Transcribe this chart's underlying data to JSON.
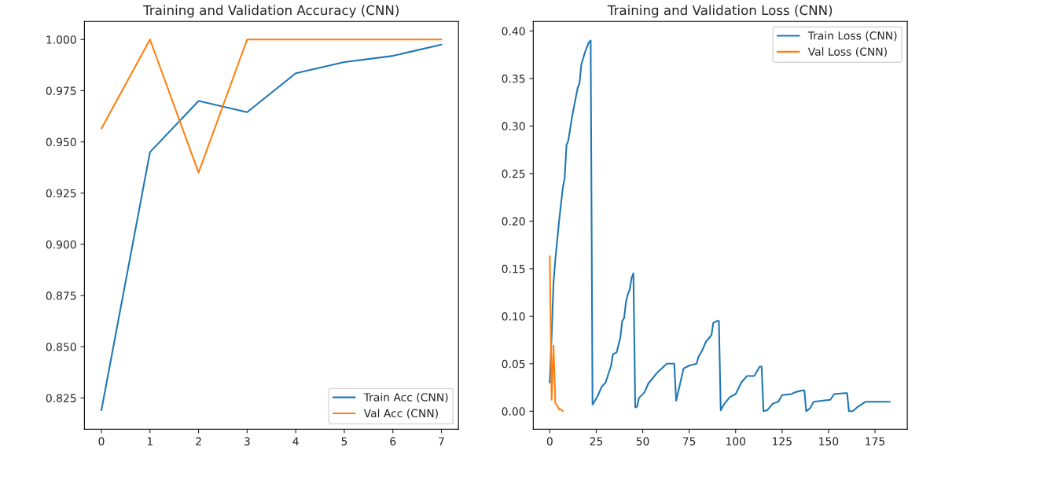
{
  "chart_data": [
    {
      "type": "line",
      "title": "Training and Validation Accuracy (CNN)",
      "xlim": [
        -0.35,
        7.35
      ],
      "ylim": [
        0.8097,
        1.0088
      ],
      "xticks": [
        0,
        1,
        2,
        3,
        4,
        5,
        6,
        7
      ],
      "yticks": [
        {
          "value": 0.825,
          "label": "0.825"
        },
        {
          "value": 0.85,
          "label": "0.850"
        },
        {
          "value": 0.875,
          "label": "0.875"
        },
        {
          "value": 0.9,
          "label": "0.900"
        },
        {
          "value": 0.925,
          "label": "0.925"
        },
        {
          "value": 0.95,
          "label": "0.950"
        },
        {
          "value": 0.975,
          "label": "0.975"
        },
        {
          "value": 1.0,
          "label": "1.000"
        }
      ],
      "grid": false,
      "legend": "lower right",
      "series": [
        {
          "name": "Train Acc (CNN)",
          "color": "#1f77b4",
          "x": [
            0,
            1,
            2,
            3,
            4,
            5,
            6,
            7
          ],
          "values": [
            0.819,
            0.945,
            0.97,
            0.9645,
            0.9835,
            0.989,
            0.992,
            0.9975
          ]
        },
        {
          "name": "Val Acc (CNN)",
          "color": "#ff7f0e",
          "x": [
            0,
            1,
            2,
            3,
            4,
            5,
            6,
            7
          ],
          "values": [
            0.9565,
            1.0,
            0.935,
            1.0,
            1.0,
            1.0,
            1.0,
            1.0
          ]
        }
      ]
    },
    {
      "type": "line",
      "title": "Training and Validation Loss (CNN)",
      "xlim": [
        -8.9,
        192.4
      ],
      "ylim": [
        -0.019,
        0.41
      ],
      "xticks": [
        0,
        25,
        50,
        75,
        100,
        125,
        150,
        175
      ],
      "yticks": [
        {
          "value": 0.0,
          "label": "0.00"
        },
        {
          "value": 0.05,
          "label": "0.05"
        },
        {
          "value": 0.1,
          "label": "0.10"
        },
        {
          "value": 0.15,
          "label": "0.15"
        },
        {
          "value": 0.2,
          "label": "0.20"
        },
        {
          "value": 0.25,
          "label": "0.25"
        },
        {
          "value": 0.3,
          "label": "0.30"
        },
        {
          "value": 0.35,
          "label": "0.35"
        },
        {
          "value": 0.4,
          "label": "0.40"
        }
      ],
      "grid": false,
      "legend": "top right",
      "series": [
        {
          "name": "Train Loss (CNN)",
          "color": "#1f77b4",
          "x": [
            0,
            1,
            2,
            3,
            5,
            7,
            8,
            9,
            10,
            12,
            14,
            15,
            16,
            17,
            19,
            21,
            22,
            23,
            24,
            26,
            28,
            30,
            32,
            33,
            34,
            36,
            38,
            39,
            40,
            41,
            42,
            43,
            44,
            45,
            46,
            47,
            48,
            51,
            53,
            58,
            63,
            67,
            68,
            70,
            72,
            75,
            79,
            80,
            82,
            84,
            87,
            88,
            90,
            91,
            92,
            94,
            97,
            100,
            103,
            106,
            110,
            113,
            114,
            115,
            117,
            120,
            123,
            125,
            130,
            132,
            136,
            137,
            138,
            140,
            142,
            151,
            153,
            159,
            160,
            161,
            163,
            166,
            170,
            183
          ],
          "values": [
            0.03,
            0.08,
            0.135,
            0.16,
            0.2,
            0.235,
            0.245,
            0.28,
            0.285,
            0.31,
            0.33,
            0.34,
            0.345,
            0.365,
            0.378,
            0.388,
            0.39,
            0.007,
            0.01,
            0.017,
            0.026,
            0.03,
            0.042,
            0.048,
            0.06,
            0.062,
            0.078,
            0.095,
            0.098,
            0.115,
            0.123,
            0.128,
            0.14,
            0.145,
            0.004,
            0.005,
            0.014,
            0.02,
            0.029,
            0.041,
            0.05,
            0.05,
            0.011,
            0.028,
            0.045,
            0.048,
            0.05,
            0.057,
            0.064,
            0.073,
            0.08,
            0.093,
            0.095,
            0.095,
            0.001,
            0.008,
            0.015,
            0.018,
            0.03,
            0.037,
            0.037,
            0.047,
            0.047,
            0.0,
            0.001,
            0.008,
            0.01,
            0.017,
            0.018,
            0.02,
            0.022,
            0.022,
            0.0,
            0.003,
            0.01,
            0.012,
            0.018,
            0.019,
            0.019,
            0.0,
            0.0,
            0.005,
            0.01,
            0.01
          ]
        },
        {
          "name": "Val Loss (CNN)",
          "color": "#ff7f0e",
          "x": [
            0,
            1,
            2,
            3,
            4,
            5,
            6,
            7
          ],
          "values": [
            0.163,
            0.012,
            0.069,
            0.008,
            0.006,
            0.002,
            0.002,
            0.0
          ]
        }
      ]
    }
  ]
}
